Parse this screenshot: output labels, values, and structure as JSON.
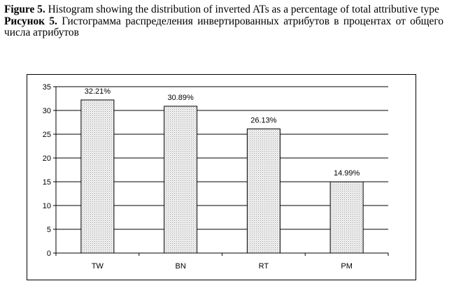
{
  "caption": {
    "en_prefix": "Figure 5.",
    "en_text": " Histogram showing the distribution of inverted ATs as a percentage of total attributive type",
    "ru_prefix": "Рисунок 5.",
    "ru_text": " Гистограмма распределения инвертированных атрибутов в процентах от общего числа атрибутов"
  },
  "chart_data": {
    "type": "bar",
    "categories": [
      "TW",
      "BN",
      "RT",
      "PM"
    ],
    "values": [
      32.21,
      30.89,
      26.13,
      14.99
    ],
    "data_labels": [
      "32.21%",
      "30.89%",
      "26.13%",
      "14.99%"
    ],
    "title": "",
    "xlabel": "",
    "ylabel": "",
    "ylim": [
      0,
      35
    ],
    "yticks": [
      0,
      5,
      10,
      15,
      20,
      25,
      30,
      35
    ],
    "grid": true,
    "legend": "none",
    "bar_fill": "#e8e8e8",
    "bar_stroke": "#000000"
  }
}
